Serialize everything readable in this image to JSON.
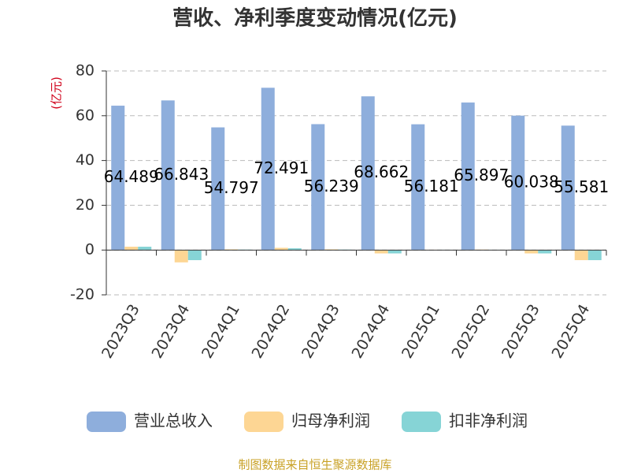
{
  "chart_data": {
    "type": "bar",
    "title": "营收、净利季度变动情况(亿元)",
    "y_label": "(亿元)",
    "source": "制图数据来自恒生聚源数据库",
    "categories": [
      "2023Q3",
      "2023Q4",
      "2024Q1",
      "2024Q2",
      "2024Q3",
      "2024Q4",
      "2025Q1",
      "2025Q2",
      "2025Q3",
      "2025Q4"
    ],
    "series": [
      {
        "name": "营业总收入",
        "color": "#8eaedc",
        "values": [
          64.489,
          66.843,
          54.797,
          72.491,
          56.239,
          68.662,
          56.181,
          65.897,
          60.038,
          55.581
        ],
        "data_labels": true
      },
      {
        "name": "归母净利润",
        "color": "#fdd694",
        "values": [
          1.5,
          -5.5,
          0.3,
          1.0,
          0.3,
          -1.5,
          0.1,
          0.2,
          -1.5,
          -4.5
        ]
      },
      {
        "name": "扣非净利润",
        "color": "#86d4d6",
        "values": [
          1.5,
          -4.5,
          0.2,
          0.8,
          0.2,
          -1.5,
          0.1,
          0.1,
          -1.5,
          -4.5
        ]
      }
    ],
    "ylim": [
      -20,
      80
    ],
    "yticks": [
      -20,
      0,
      20,
      40,
      60,
      80
    ],
    "grid": true
  }
}
